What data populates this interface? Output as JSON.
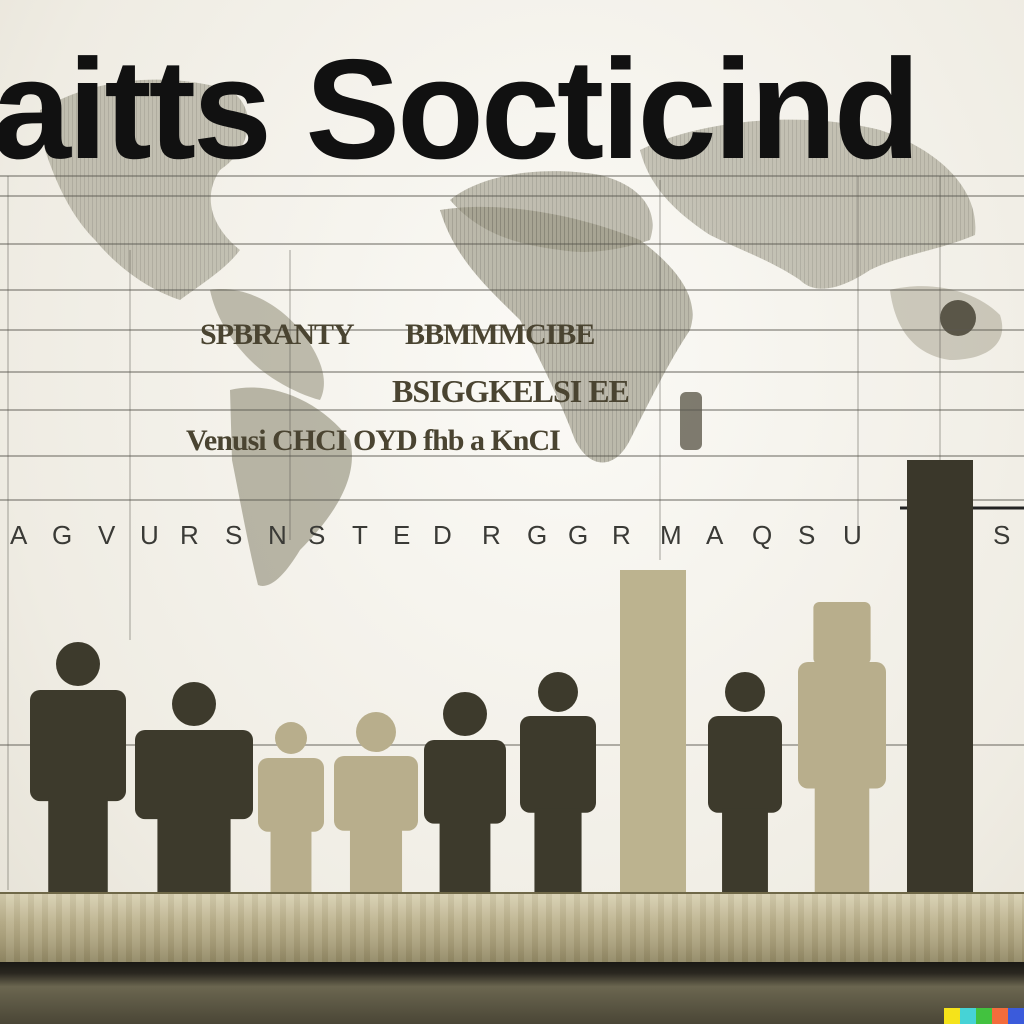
{
  "title": "aitts Socticind",
  "map_text": {
    "line1a": "SPBRANTY",
    "line1b": "BBMMMCIBE",
    "line2": "BSIGGKELSI EE",
    "line3": "Venusi CHCI OYD fhb a KnCI"
  },
  "axis_letters": [
    "A",
    "G",
    "V",
    "U",
    "R",
    "S",
    "N",
    "S",
    "T",
    "E",
    "D",
    "R",
    "G",
    "G",
    "R",
    "M",
    "A",
    "Q",
    "S",
    "U",
    "S"
  ],
  "colors": {
    "ink": "#111111",
    "figure_dark": "#3d3a2c",
    "figure_light": "#b8ae8c",
    "bar_light": "#bcb38f",
    "bar_dark": "#3a372a",
    "shelf": "#bdb38f"
  },
  "watermark_colors": [
    "#f5e31a",
    "#46d3d6",
    "#42c23f",
    "#f36c3c",
    "#3b5bdb"
  ],
  "figures": [
    {
      "shape": "person",
      "tone": "dark"
    },
    {
      "shape": "person",
      "tone": "dark"
    },
    {
      "shape": "person",
      "tone": "light"
    },
    {
      "shape": "person",
      "tone": "light"
    },
    {
      "shape": "person",
      "tone": "dark"
    },
    {
      "shape": "person",
      "tone": "dark"
    },
    {
      "shape": "bar",
      "tone": "light"
    },
    {
      "shape": "person",
      "tone": "dark"
    },
    {
      "shape": "person",
      "tone": "light"
    },
    {
      "shape": "bar",
      "tone": "dark"
    }
  ]
}
